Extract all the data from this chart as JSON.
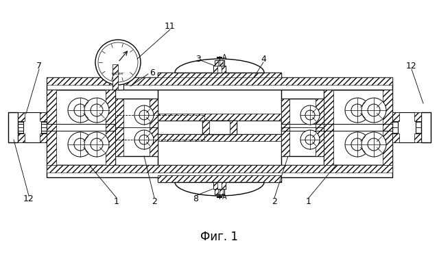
{
  "bg_color": "#ffffff",
  "fig_caption": "Фиг. 1",
  "fig_caption_fontsize": 12,
  "labels": [
    "1",
    "1",
    "2",
    "2",
    "3",
    "4",
    "6",
    "7",
    "8",
    "11",
    "12",
    "12"
  ],
  "lw_main": 1.0,
  "lw_thin": 0.6
}
